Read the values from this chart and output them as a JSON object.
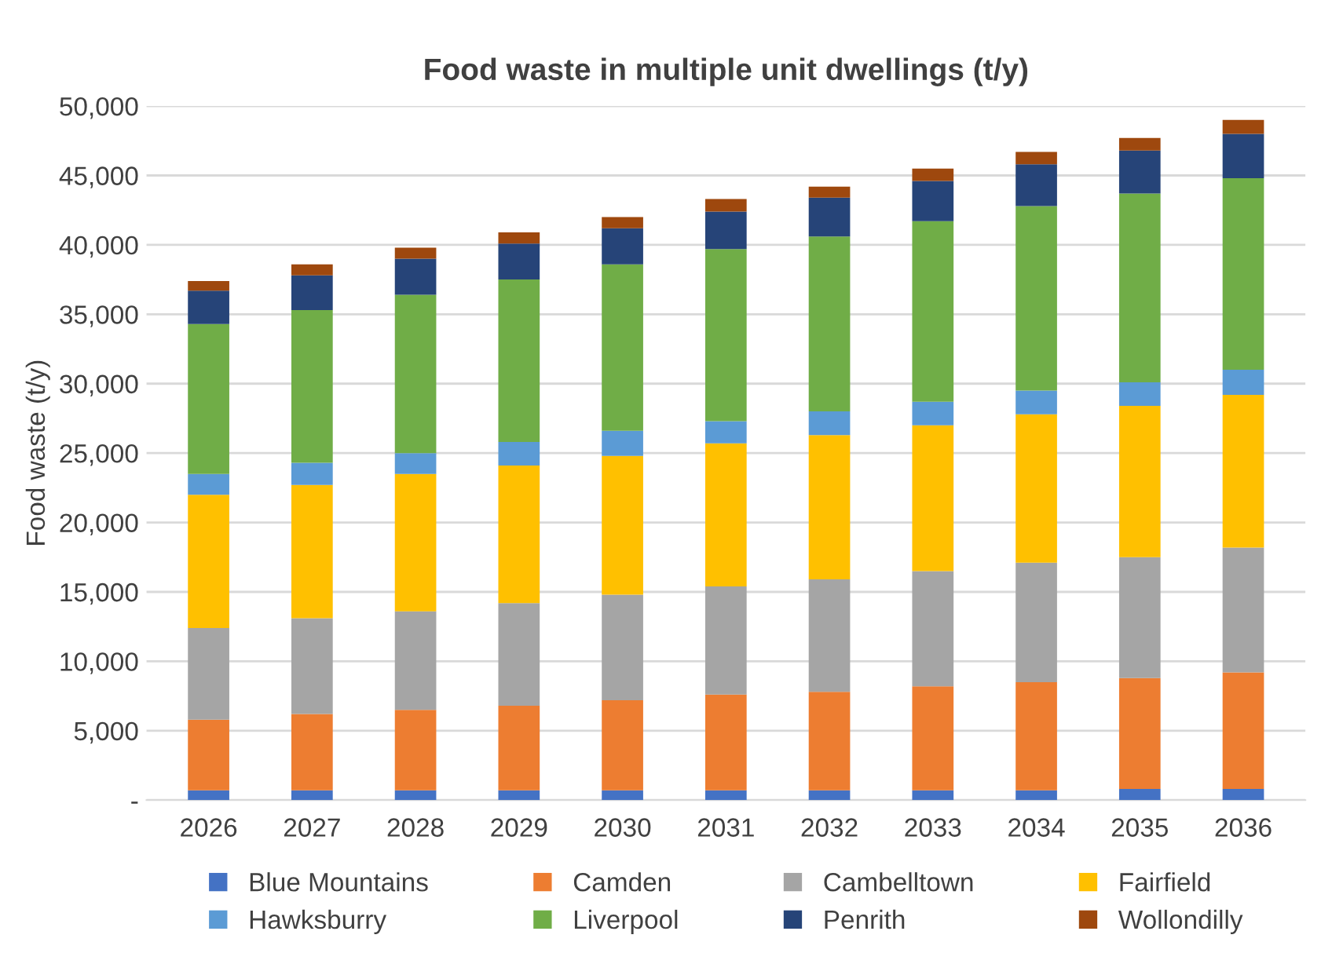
{
  "chart_data": {
    "type": "bar",
    "stacked": true,
    "title": "Food waste in multiple unit dwellings (t/y)",
    "ylabel": "Food waste (t/y)",
    "categories": [
      "2026",
      "2027",
      "2028",
      "2029",
      "2030",
      "2031",
      "2032",
      "2033",
      "2034",
      "2035",
      "2036"
    ],
    "series": [
      {
        "name": "Blue Mountains",
        "color": "#4472c4",
        "values": [
          700,
          700,
          700,
          700,
          700,
          700,
          700,
          700,
          700,
          800,
          800
        ]
      },
      {
        "name": "Camden",
        "color": "#ed7d31",
        "values": [
          5100,
          5500,
          5800,
          6100,
          6500,
          6900,
          7100,
          7500,
          7800,
          8000,
          8400
        ]
      },
      {
        "name": "Cambelltown",
        "color": "#a5a5a5",
        "values": [
          6600,
          6900,
          7100,
          7400,
          7600,
          7800,
          8100,
          8300,
          8600,
          8700,
          9000
        ]
      },
      {
        "name": "Fairfield",
        "color": "#ffc000",
        "values": [
          9600,
          9600,
          9900,
          9900,
          10000,
          10300,
          10400,
          10500,
          10700,
          10900,
          11000
        ]
      },
      {
        "name": "Hawksburry",
        "color": "#5b9bd5",
        "values": [
          1500,
          1600,
          1500,
          1700,
          1800,
          1600,
          1700,
          1700,
          1700,
          1700,
          1800
        ]
      },
      {
        "name": "Liverpool",
        "color": "#70ad47",
        "values": [
          10800,
          11000,
          11400,
          11700,
          12000,
          12400,
          12600,
          13000,
          13300,
          13600,
          13800
        ]
      },
      {
        "name": "Penrith",
        "color": "#264478",
        "values": [
          2400,
          2500,
          2600,
          2600,
          2600,
          2700,
          2800,
          2900,
          3000,
          3100,
          3200
        ]
      },
      {
        "name": "Wollondilly",
        "color": "#9e480e",
        "values": [
          700,
          800,
          800,
          800,
          800,
          900,
          800,
          900,
          900,
          900,
          1000
        ]
      }
    ],
    "ylim": [
      0,
      50000
    ],
    "yticks": [
      {
        "value": 0,
        "label": "-"
      },
      {
        "value": 5000,
        "label": "5,000"
      },
      {
        "value": 10000,
        "label": "10,000"
      },
      {
        "value": 15000,
        "label": "15,000"
      },
      {
        "value": 20000,
        "label": "20,000"
      },
      {
        "value": 25000,
        "label": "25,000"
      },
      {
        "value": 30000,
        "label": "30,000"
      },
      {
        "value": 35000,
        "label": "35,000"
      },
      {
        "value": 40000,
        "label": "40,000"
      },
      {
        "value": 45000,
        "label": "45,000"
      },
      {
        "value": 50000,
        "label": "50,000"
      }
    ],
    "grid": "y",
    "legend": "bottom"
  }
}
